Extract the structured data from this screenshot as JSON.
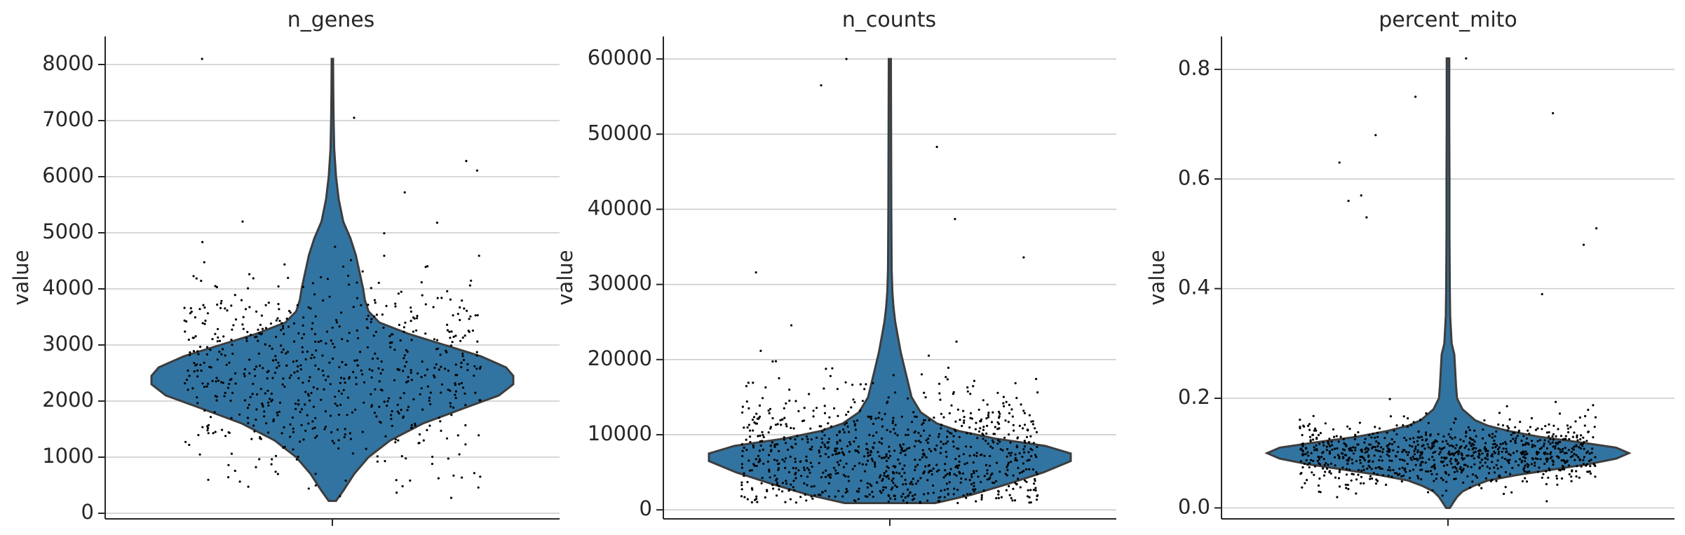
{
  "chart_data": [
    {
      "type": "violin",
      "title": "n_genes",
      "ylabel": "value",
      "ylim": [
        -100,
        8500
      ],
      "yticks": [
        0,
        1000,
        2000,
        3000,
        4000,
        5000,
        6000,
        7000,
        8000
      ],
      "ytick_labels": [
        "0",
        "1000",
        "2000",
        "3000",
        "4000",
        "5000",
        "6000",
        "7000",
        "8000"
      ],
      "grid": true,
      "jitter_points": true,
      "violin_profile": [
        [
          220,
          0.02
        ],
        [
          400,
          0.06
        ],
        [
          700,
          0.12
        ],
        [
          1000,
          0.2
        ],
        [
          1300,
          0.32
        ],
        [
          1600,
          0.5
        ],
        [
          1900,
          0.75
        ],
        [
          2100,
          0.92
        ],
        [
          2300,
          1.0
        ],
        [
          2450,
          1.0
        ],
        [
          2600,
          0.96
        ],
        [
          2800,
          0.82
        ],
        [
          3000,
          0.62
        ],
        [
          3200,
          0.42
        ],
        [
          3400,
          0.26
        ],
        [
          3600,
          0.2
        ],
        [
          3800,
          0.18
        ],
        [
          4000,
          0.17
        ],
        [
          4300,
          0.15
        ],
        [
          4600,
          0.13
        ],
        [
          4900,
          0.1
        ],
        [
          5200,
          0.06
        ],
        [
          5600,
          0.035
        ],
        [
          6000,
          0.02
        ],
        [
          6500,
          0.01
        ],
        [
          7000,
          0.007
        ],
        [
          7500,
          0.005
        ],
        [
          8100,
          0.004
        ]
      ],
      "outliers": [
        [
          -0.72,
          8100
        ],
        [
          0.12,
          7050
        ],
        [
          0.74,
          6280
        ],
        [
          0.8,
          6110
        ],
        [
          0.4,
          5720
        ]
      ],
      "scatter_center": 2500,
      "scatter_spread": 900,
      "scatter_count": 700
    },
    {
      "type": "violin",
      "title": "n_counts",
      "ylabel": "value",
      "ylim": [
        -1200,
        63000
      ],
      "yticks": [
        0,
        10000,
        20000,
        30000,
        40000,
        50000,
        60000
      ],
      "ytick_labels": [
        "0",
        "10000",
        "20000",
        "30000",
        "40000",
        "50000",
        "60000"
      ],
      "grid": true,
      "jitter_points": true,
      "violin_profile": [
        [
          900,
          0.25
        ],
        [
          2000,
          0.45
        ],
        [
          3500,
          0.66
        ],
        [
          5000,
          0.85
        ],
        [
          6500,
          1.0
        ],
        [
          7500,
          1.0
        ],
        [
          8500,
          0.86
        ],
        [
          9500,
          0.58
        ],
        [
          10500,
          0.38
        ],
        [
          11500,
          0.26
        ],
        [
          13000,
          0.17
        ],
        [
          15000,
          0.12
        ],
        [
          17000,
          0.1
        ],
        [
          19000,
          0.08
        ],
        [
          21000,
          0.06
        ],
        [
          23000,
          0.045
        ],
        [
          25000,
          0.03
        ],
        [
          27000,
          0.02
        ],
        [
          29000,
          0.014
        ],
        [
          32000,
          0.01
        ],
        [
          40000,
          0.008
        ],
        [
          50000,
          0.007
        ],
        [
          60000,
          0.006
        ]
      ],
      "outliers": [
        [
          -0.38,
          56500
        ],
        [
          -0.24,
          60000
        ],
        [
          0.26,
          48300
        ],
        [
          0.36,
          38700
        ],
        [
          0.74,
          33600
        ],
        [
          -0.74,
          31600
        ]
      ],
      "scatter_center": 7500,
      "scatter_spread": 4500,
      "scatter_count": 900
    },
    {
      "type": "violin",
      "title": "percent_mito",
      "ylabel": "value",
      "ylim": [
        -0.02,
        0.86
      ],
      "yticks": [
        0.0,
        0.2,
        0.4,
        0.6,
        0.8
      ],
      "ytick_labels": [
        "0.0",
        "0.2",
        "0.4",
        "0.6",
        "0.8"
      ],
      "grid": true,
      "jitter_points": true,
      "violin_profile": [
        [
          0.0,
          0.01
        ],
        [
          0.01,
          0.03
        ],
        [
          0.02,
          0.05
        ],
        [
          0.03,
          0.08
        ],
        [
          0.04,
          0.14
        ],
        [
          0.05,
          0.22
        ],
        [
          0.06,
          0.38
        ],
        [
          0.07,
          0.58
        ],
        [
          0.08,
          0.78
        ],
        [
          0.09,
          0.93
        ],
        [
          0.1,
          1.0
        ],
        [
          0.11,
          0.93
        ],
        [
          0.12,
          0.72
        ],
        [
          0.13,
          0.5
        ],
        [
          0.14,
          0.34
        ],
        [
          0.15,
          0.22
        ],
        [
          0.16,
          0.15
        ],
        [
          0.18,
          0.08
        ],
        [
          0.2,
          0.05
        ],
        [
          0.22,
          0.045
        ],
        [
          0.25,
          0.04
        ],
        [
          0.28,
          0.035
        ],
        [
          0.3,
          0.02
        ],
        [
          0.35,
          0.012
        ],
        [
          0.4,
          0.01
        ],
        [
          0.5,
          0.008
        ],
        [
          0.6,
          0.008
        ],
        [
          0.7,
          0.007
        ],
        [
          0.82,
          0.007
        ]
      ],
      "outliers": [
        [
          -0.6,
          0.63
        ],
        [
          -0.4,
          0.68
        ],
        [
          -0.55,
          0.56
        ],
        [
          -0.48,
          0.57
        ],
        [
          -0.45,
          0.53
        ],
        [
          0.1,
          0.82
        ],
        [
          -0.18,
          0.75
        ],
        [
          0.58,
          0.72
        ],
        [
          0.75,
          0.48
        ],
        [
          0.82,
          0.51
        ],
        [
          0.52,
          0.39
        ]
      ],
      "scatter_center": 0.1,
      "scatter_spread": 0.03,
      "scatter_count": 900
    }
  ]
}
